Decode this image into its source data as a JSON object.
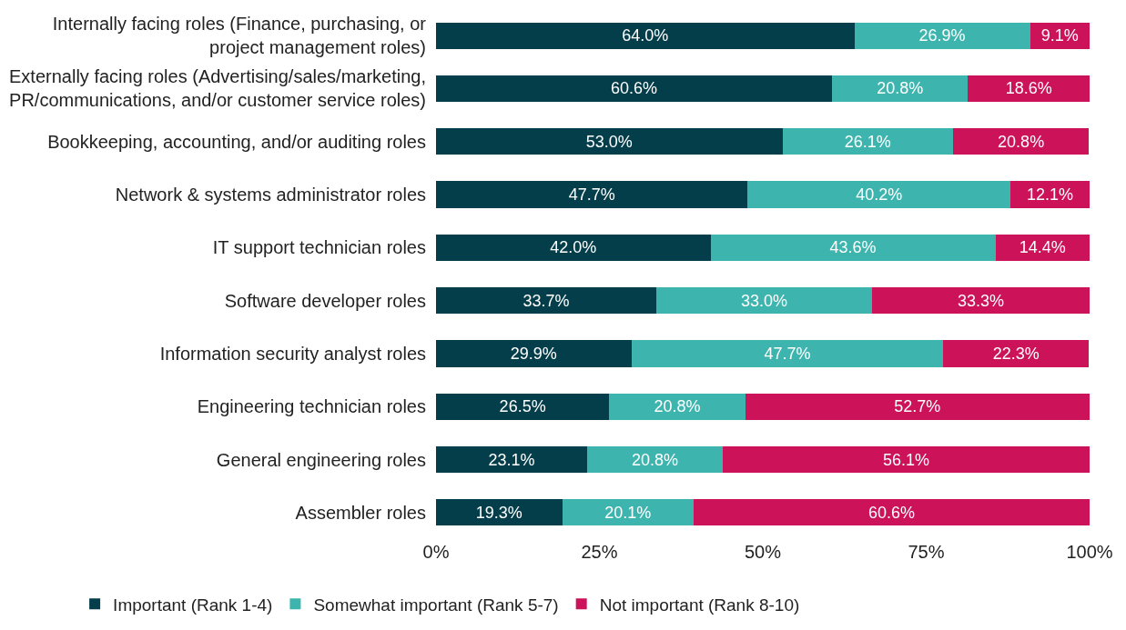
{
  "chart_data": {
    "type": "bar",
    "orientation": "horizontal",
    "stacked": true,
    "categories": [
      "Internally facing roles (Finance, purchasing, or project management roles)",
      "Externally facing roles (Advertising/sales/marketing, PR/communications, and/or customer service roles)",
      "Bookkeeping, accounting, and/or auditing roles",
      "Network & systems administrator roles",
      "IT support technician roles",
      "Software developer roles",
      "Information security analyst roles",
      "Engineering technician roles",
      "General engineering roles",
      "Assembler roles"
    ],
    "series": [
      {
        "name": "Important (Rank 1-4)",
        "color": "#053e4b",
        "values": [
          64.0,
          60.6,
          53.0,
          47.7,
          42.0,
          33.7,
          29.9,
          26.5,
          23.1,
          19.3
        ],
        "value_labels": [
          "64.0%",
          "60.6%",
          "53.0%",
          "47.7%",
          "42.0%",
          "33.7%",
          "29.9%",
          "26.5%",
          "23.1%",
          "19.3%"
        ]
      },
      {
        "name": "Somewhat important (Rank 5-7)",
        "color": "#3db5ae",
        "values": [
          26.9,
          20.8,
          26.1,
          40.2,
          43.6,
          33.0,
          47.7,
          20.8,
          20.8,
          20.1
        ],
        "value_labels": [
          "26.9%",
          "20.8%",
          "26.1%",
          "40.2%",
          "43.6%",
          "33.0%",
          "47.7%",
          "20.8%",
          "20.8%",
          "20.1%"
        ]
      },
      {
        "name": "Not important (Rank 8-10)",
        "color": "#cc1259",
        "values": [
          9.1,
          18.6,
          20.8,
          12.1,
          14.4,
          33.3,
          22.3,
          52.7,
          56.1,
          60.6
        ],
        "value_labels": [
          "9.1%",
          "18.6%",
          "20.8%",
          "12.1%",
          "14.4%",
          "33.3%",
          "22.3%",
          "52.7%",
          "56.1%",
          "60.6%"
        ]
      }
    ],
    "xlim": [
      0,
      100
    ],
    "xticks": [
      {
        "value": 0,
        "label": "0%"
      },
      {
        "value": 25,
        "label": "25%"
      },
      {
        "value": 50,
        "label": "50%"
      },
      {
        "value": 75,
        "label": "75%"
      },
      {
        "value": 100,
        "label": "100%"
      }
    ],
    "legend": "bottom"
  }
}
